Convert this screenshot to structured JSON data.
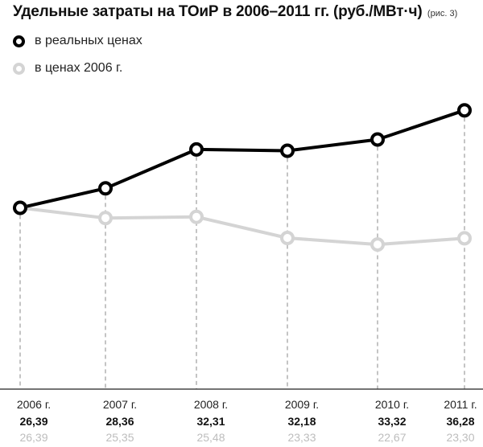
{
  "title": "Удельные затраты на ТОиР в 2006–2011 гг. (руб./МВт·ч)",
  "title_note": "(рис. 3)",
  "legend": [
    {
      "label": "в реальных ценах",
      "color": "#000000"
    },
    {
      "label": "в ценах 2006 г.",
      "color": "#d4d4d4"
    }
  ],
  "chart_data": {
    "type": "line",
    "x": [
      "2006 г.",
      "2007 г.",
      "2008 г.",
      "2009 г.",
      "2010 г.",
      "2011 г."
    ],
    "series": [
      {
        "name": "в реальных ценах",
        "color": "#000000",
        "values": [
          26.39,
          28.36,
          32.31,
          32.18,
          33.32,
          36.28
        ],
        "labels": [
          "26,39",
          "28,36",
          "32,31",
          "32,18",
          "33,32",
          "36,28"
        ]
      },
      {
        "name": "в ценах 2006 г.",
        "color": "#d4d4d4",
        "values": [
          26.39,
          25.35,
          25.48,
          23.33,
          22.67,
          23.3
        ],
        "labels": [
          "26,39",
          "25,35",
          "25,48",
          "23,33",
          "22,67",
          "23,30"
        ]
      }
    ],
    "title": "Удельные затраты на ТОиР в 2006–2011 гг. (руб./МВт·ч)",
    "xlabel": "",
    "ylabel": "",
    "ylim": [
      8,
      38.5
    ],
    "grid": "vertical-dashed",
    "legend_position": "top-left"
  }
}
